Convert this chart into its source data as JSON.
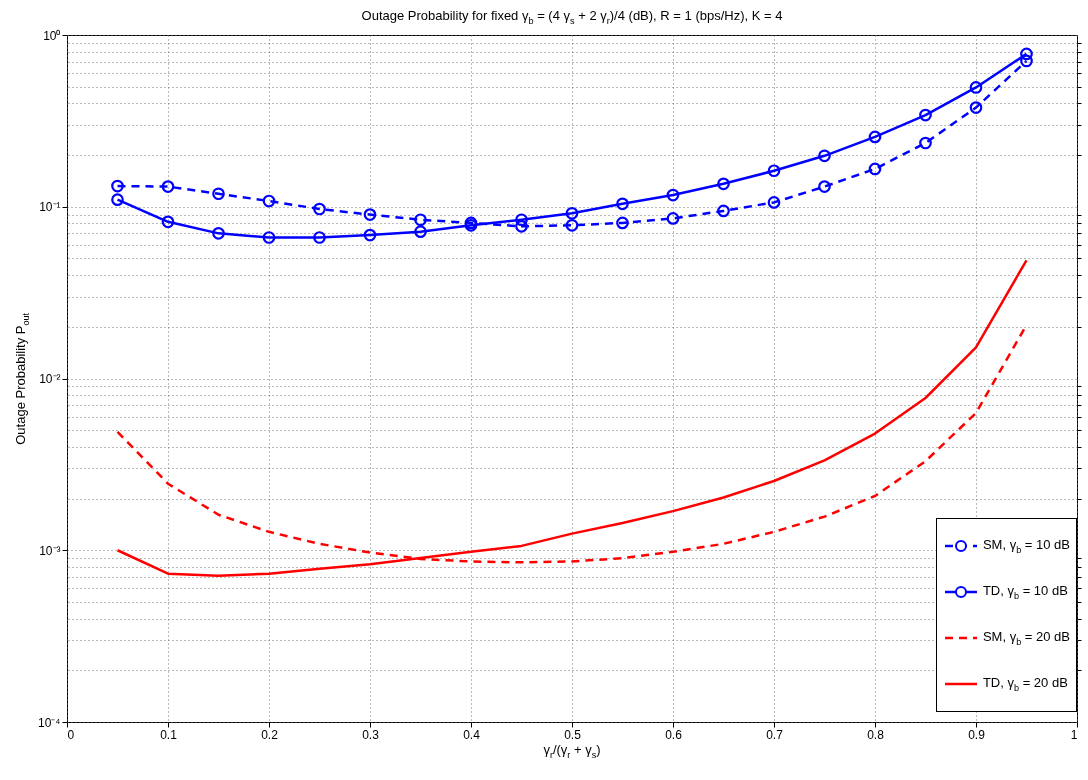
{
  "chart_data": {
    "type": "line",
    "title": "Outage Probability for fixed γ$_{b}$ = (4 γ$_{s}$ + 2 γ$_{r}$)/4 (dB), R = 1 (bps/Hz), K = 4",
    "xlabel": "γ$_{r}$/(γ$_{r}$ + γ$_{s}$)",
    "ylabel": "Outage Probability P$_{out}$",
    "x": [
      0.05,
      0.1,
      0.15,
      0.2,
      0.25,
      0.3,
      0.35,
      0.4,
      0.45,
      0.5,
      0.55,
      0.6,
      0.65,
      0.7,
      0.75,
      0.8,
      0.85,
      0.9,
      0.95
    ],
    "series": [
      {
        "name": "SM, γ$_{b}$ = 10 dB",
        "color": "#0000ff",
        "line_style": "dashed",
        "marker": "circle",
        "values": [
          0.132,
          0.131,
          0.119,
          0.108,
          0.097,
          0.09,
          0.084,
          0.0805,
          0.0769,
          0.078,
          0.0805,
          0.0855,
          0.0946,
          0.106,
          0.131,
          0.166,
          0.235,
          0.378,
          0.706
        ]
      },
      {
        "name": "TD, γ$_{b}$ = 10 dB",
        "color": "#0000ff",
        "line_style": "solid",
        "marker": "circle",
        "values": [
          0.11,
          0.0817,
          0.07,
          0.0662,
          0.0662,
          0.0684,
          0.0716,
          0.078,
          0.084,
          0.0916,
          0.104,
          0.117,
          0.136,
          0.162,
          0.198,
          0.255,
          0.342,
          0.495,
          0.776
        ]
      },
      {
        "name": "SM, γ$_{b}$ = 20 dB",
        "color": "#ff0000",
        "line_style": "dashed",
        "marker": "none",
        "values": [
          0.00489,
          0.00244,
          0.00161,
          0.00128,
          0.00109,
          0.00097,
          0.00089,
          0.00086,
          0.00085,
          0.00086,
          0.0009,
          0.00098,
          0.00109,
          0.00128,
          0.00157,
          0.00207,
          0.0033,
          0.0063,
          0.0205
        ]
      },
      {
        "name": "TD, γ$_{b}$ = 20 dB",
        "color": "#ff0000",
        "line_style": "solid",
        "marker": "none",
        "values": [
          0.001,
          0.00073,
          0.00071,
          0.00073,
          0.00078,
          0.00083,
          0.0009,
          0.00098,
          0.00106,
          0.00125,
          0.00144,
          0.00169,
          0.00203,
          0.00253,
          0.00334,
          0.00478,
          0.0077,
          0.0152,
          0.0488
        ]
      }
    ],
    "xlim": [
      0,
      1
    ],
    "xticks": [
      0,
      0.1,
      0.2,
      0.3,
      0.4,
      0.5,
      0.6,
      0.7,
      0.8,
      0.9,
      1
    ],
    "ylim": [
      0.0001,
      1
    ],
    "yticks": [
      {
        "value": 0.0001,
        "label": "10⁻⁴"
      },
      {
        "value": 0.001,
        "label": "10⁻³"
      },
      {
        "value": 0.01,
        "label": "10⁻²"
      },
      {
        "value": 0.1,
        "label": "10⁻¹"
      },
      {
        "value": 1,
        "label": "10⁰"
      }
    ],
    "log": "y",
    "grid": true,
    "legend": "bottom right"
  }
}
